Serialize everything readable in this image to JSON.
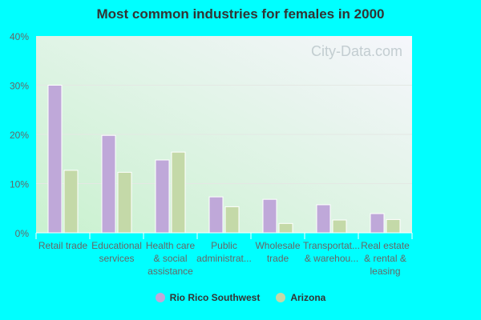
{
  "chart_data": {
    "type": "bar",
    "title": "Most common industries for females in 2000",
    "categories": [
      [
        "Retail trade"
      ],
      [
        "Educational",
        "services"
      ],
      [
        "Health care",
        "& social",
        "assistance"
      ],
      [
        "Public",
        "administrat..."
      ],
      [
        "Wholesale",
        "trade"
      ],
      [
        "Transportat...",
        "& warehou..."
      ],
      [
        "Real estate",
        "& rental &",
        "leasing"
      ]
    ],
    "series": [
      {
        "name": "Rio Rico Southwest",
        "color": "#bfa8d9",
        "values": [
          30.0,
          19.8,
          14.8,
          7.3,
          6.8,
          5.7,
          3.9
        ]
      },
      {
        "name": "Arizona",
        "color": "#c4d9a8",
        "values": [
          12.7,
          12.3,
          16.4,
          5.3,
          1.9,
          2.6,
          2.7
        ]
      }
    ],
    "ylim": [
      0,
      40
    ],
    "yticks": [
      "0%",
      "10%",
      "20%",
      "30%",
      "40%"
    ],
    "ytick_values": [
      0,
      10,
      20,
      30,
      40
    ],
    "grid": true,
    "legend": "bottom",
    "watermark": "City-Data.com"
  }
}
